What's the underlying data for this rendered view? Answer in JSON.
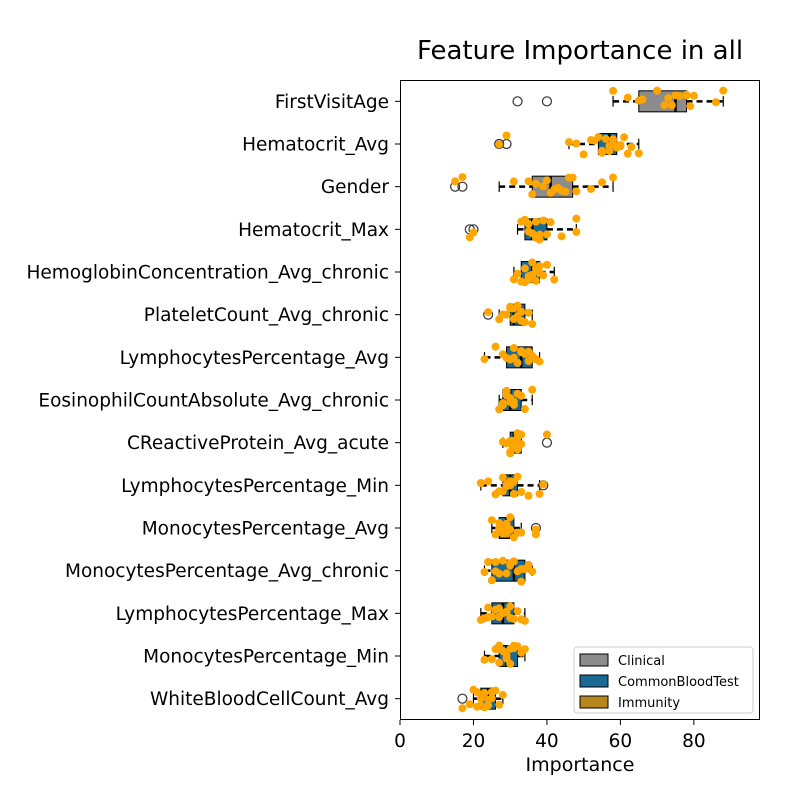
{
  "chart_data": {
    "type": "box",
    "title": "Feature Importance in all",
    "xlabel": "Importance",
    "ylabel": "",
    "xlim": [
      0,
      98
    ],
    "xticks": [
      0,
      20,
      40,
      60,
      80
    ],
    "grid": false,
    "legend_position": "lower-right",
    "legend": [
      {
        "name": "Clinical",
        "color": "#8c8c8c"
      },
      {
        "name": "CommonBloodTest",
        "color": "#1b6a96"
      },
      {
        "name": "Immunity",
        "color": "#b8861e"
      }
    ],
    "point_color": "#ffa500",
    "features": [
      {
        "name": "FirstVisitAge",
        "group": "Clinical",
        "whisker_low": 58,
        "q1": 65,
        "median": 75,
        "q3": 78,
        "whisker_high": 88,
        "outliers": [
          32,
          40
        ],
        "points": [
          66,
          70,
          73,
          75,
          76,
          78,
          79,
          88,
          58,
          62,
          74,
          78,
          65,
          72,
          80,
          86
        ]
      },
      {
        "name": "Hematocrit_Avg",
        "group": "CommonBloodTest",
        "whisker_low": 46,
        "q1": 54,
        "median": 57,
        "q3": 59,
        "whisker_high": 65,
        "outliers": [
          27,
          29
        ],
        "points": [
          46,
          48,
          50,
          52,
          53,
          54,
          55,
          56,
          57,
          58,
          59,
          60,
          61,
          62,
          63,
          65,
          27,
          29,
          55,
          57,
          58,
          60
        ]
      },
      {
        "name": "Gender",
        "group": "Clinical",
        "whisker_low": 27,
        "q1": 36,
        "median": 41,
        "q3": 47,
        "whisker_high": 58,
        "outliers": [
          15,
          17
        ],
        "points": [
          15,
          17,
          31,
          35,
          37,
          39,
          40,
          41,
          42,
          43,
          45,
          47,
          48,
          52,
          55,
          58,
          36,
          44,
          46
        ]
      },
      {
        "name": "Hematocrit_Max",
        "group": "CommonBloodTest",
        "whisker_low": 32,
        "q1": 34,
        "median": 36,
        "q3": 40,
        "whisker_high": 48,
        "outliers": [
          19,
          20
        ],
        "points": [
          19,
          20,
          33,
          34,
          35,
          36,
          37,
          38,
          39,
          40,
          41,
          44,
          48,
          48,
          35,
          37,
          38
        ]
      },
      {
        "name": "HemoglobinConcentration_Avg_chronic",
        "group": "CommonBloodTest",
        "whisker_low": 31,
        "q1": 33,
        "median": 36,
        "q3": 38,
        "whisker_high": 42,
        "outliers": [],
        "points": [
          31,
          32,
          33,
          34,
          35,
          36,
          36,
          37,
          38,
          38,
          39,
          40,
          42,
          34,
          35,
          37
        ]
      },
      {
        "name": "PlateletCount_Avg_chronic",
        "group": "CommonBloodTest",
        "whisker_low": 27,
        "q1": 30,
        "median": 31,
        "q3": 34,
        "whisker_high": 36,
        "outliers": [
          24
        ],
        "points": [
          24,
          27,
          29,
          30,
          30,
          31,
          31,
          32,
          33,
          34,
          35,
          36,
          28,
          32,
          33
        ]
      },
      {
        "name": "LymphocytesPercentage_Avg",
        "group": "CommonBloodTest",
        "whisker_low": 23,
        "q1": 29,
        "median": 33,
        "q3": 36,
        "whisker_high": 38,
        "outliers": [],
        "points": [
          23,
          26,
          28,
          29,
          30,
          31,
          32,
          33,
          34,
          35,
          36,
          37,
          38,
          31,
          33,
          35
        ]
      },
      {
        "name": "EosinophilCountAbsolute_Avg_chronic",
        "group": "CommonBloodTest",
        "whisker_low": 27,
        "q1": 28,
        "median": 30,
        "q3": 33,
        "whisker_high": 36,
        "outliers": [],
        "points": [
          27,
          28,
          28,
          29,
          29,
          30,
          30,
          31,
          32,
          33,
          34,
          36,
          29,
          31
        ]
      },
      {
        "name": "CReactiveProtein_Avg_acute",
        "group": "CommonBloodTest",
        "whisker_low": 28,
        "q1": 30,
        "median": 31,
        "q3": 33,
        "whisker_high": 33,
        "outliers": [
          40
        ],
        "points": [
          28,
          29,
          30,
          30,
          31,
          31,
          32,
          32,
          33,
          33,
          40,
          30,
          31,
          32
        ]
      },
      {
        "name": "LymphocytesPercentage_Min",
        "group": "CommonBloodTest",
        "whisker_low": 22,
        "q1": 28,
        "median": 30,
        "q3": 32,
        "whisker_high": 38,
        "outliers": [
          39
        ],
        "points": [
          22,
          24,
          26,
          27,
          28,
          29,
          29,
          30,
          31,
          32,
          33,
          35,
          38,
          39,
          28,
          30,
          31
        ]
      },
      {
        "name": "MonocytesPercentage_Avg",
        "group": "CommonBloodTest",
        "whisker_low": 25,
        "q1": 27,
        "median": 29,
        "q3": 31,
        "whisker_high": 33,
        "outliers": [
          37
        ],
        "points": [
          25,
          26,
          27,
          28,
          28,
          29,
          29,
          30,
          30,
          31,
          32,
          33,
          37,
          37,
          27,
          29
        ]
      },
      {
        "name": "MonocytesPercentage_Avg_chronic",
        "group": "CommonBloodTest",
        "whisker_low": 23,
        "q1": 25,
        "median": 31,
        "q3": 34,
        "whisker_high": 36,
        "outliers": [],
        "points": [
          23,
          24,
          25,
          26,
          27,
          28,
          29,
          30,
          31,
          32,
          33,
          34,
          35,
          36,
          26,
          30,
          33
        ]
      },
      {
        "name": "LymphocytesPercentage_Max",
        "group": "CommonBloodTest",
        "whisker_low": 22,
        "q1": 25,
        "median": 28,
        "q3": 31,
        "whisker_high": 34,
        "outliers": [],
        "points": [
          22,
          23,
          24,
          25,
          26,
          27,
          28,
          29,
          30,
          31,
          32,
          33,
          34,
          24,
          27,
          30
        ]
      },
      {
        "name": "MonocytesPercentage_Min",
        "group": "CommonBloodTest",
        "whisker_low": 23,
        "q1": 27,
        "median": 29,
        "q3": 32,
        "whisker_high": 34,
        "outliers": [],
        "points": [
          23,
          25,
          26,
          27,
          28,
          28,
          29,
          29,
          30,
          31,
          32,
          33,
          34,
          27,
          30,
          31
        ]
      },
      {
        "name": "WhiteBloodCellCount_Avg",
        "group": "CommonBloodTest",
        "whisker_low": 20,
        "q1": 22,
        "median": 24,
        "q3": 26,
        "whisker_high": 28,
        "outliers": [
          17
        ],
        "points": [
          17,
          19,
          20,
          21,
          22,
          22,
          23,
          24,
          24,
          25,
          26,
          27,
          28,
          21,
          23,
          25
        ]
      }
    ]
  }
}
